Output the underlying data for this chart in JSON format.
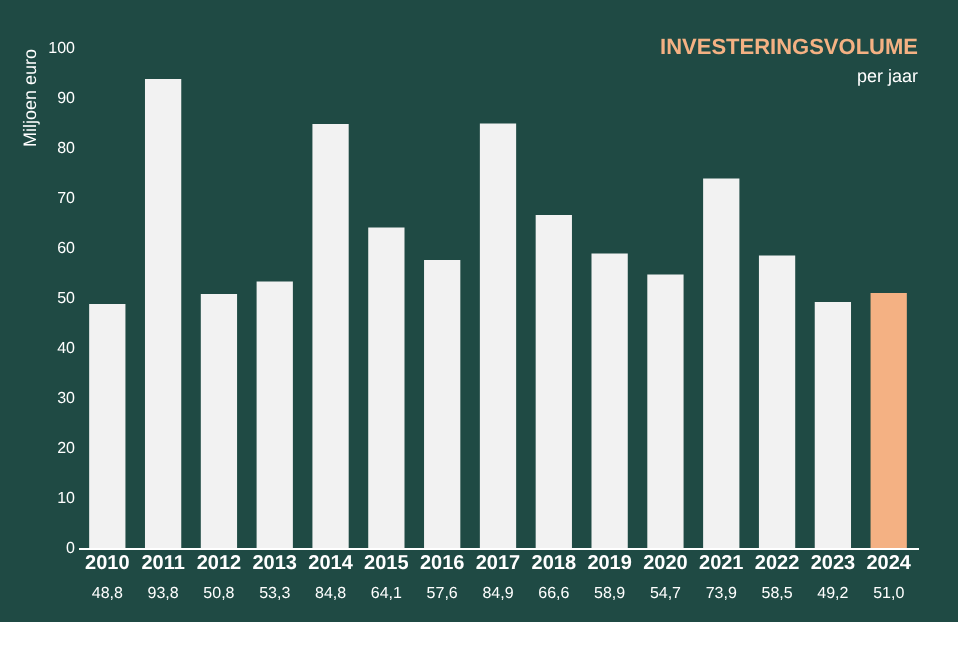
{
  "chart_data": {
    "type": "bar",
    "title": "INVESTERINGSVOLUME",
    "subtitle": "per jaar",
    "ylabel": "Miljoen euro",
    "categories": [
      "2010",
      "2011",
      "2012",
      "2013",
      "2014",
      "2015",
      "2016",
      "2017",
      "2018",
      "2019",
      "2020",
      "2021",
      "2022",
      "2023",
      "2024"
    ],
    "values": [
      48.8,
      93.8,
      50.8,
      53.3,
      84.8,
      64.1,
      57.6,
      84.9,
      66.6,
      58.9,
      54.7,
      73.9,
      58.5,
      49.2,
      51.0
    ],
    "value_labels": [
      "48,8",
      "93,8",
      "50,8",
      "53,3",
      "84,8",
      "64,1",
      "57,6",
      "84,9",
      "66,6",
      "58,9",
      "54,7",
      "73,9",
      "58,5",
      "49,2",
      "51,0"
    ],
    "colors": [
      "#f2f2f2",
      "#f2f2f2",
      "#f2f2f2",
      "#f2f2f2",
      "#f2f2f2",
      "#f2f2f2",
      "#f2f2f2",
      "#f2f2f2",
      "#f2f2f2",
      "#f2f2f2",
      "#f2f2f2",
      "#f2f2f2",
      "#f2f2f2",
      "#f2f2f2",
      "#f4b183"
    ],
    "ylim": [
      0,
      100
    ],
    "yticks": [
      0,
      10,
      20,
      30,
      40,
      50,
      60,
      70,
      80,
      90,
      100
    ],
    "grid": false
  }
}
